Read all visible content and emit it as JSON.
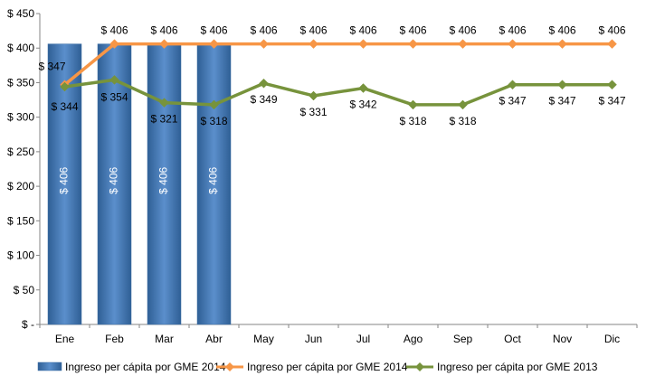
{
  "chart_data": {
    "type": "bar",
    "categories": [
      "Ene",
      "Feb",
      "Mar",
      "Abr",
      "May",
      "Jun",
      "Jul",
      "Ago",
      "Sep",
      "Oct",
      "Nov",
      "Dic"
    ],
    "y_ticks": [
      "$ -",
      "$ 50",
      "$ 100",
      "$ 150",
      "$ 200",
      "$ 250",
      "$ 300",
      "$ 350",
      "$ 400",
      "$ 450"
    ],
    "ylim": [
      0,
      450
    ],
    "grid": false,
    "legend_position": "bottom",
    "series": [
      {
        "name": "Ingreso per cápita por GME 2014",
        "kind": "bar",
        "color": "#4F81BD",
        "values": [
          406,
          406,
          406,
          406,
          null,
          null,
          null,
          null,
          null,
          null,
          null,
          null
        ],
        "labels": [
          "$ 406",
          "$ 406",
          "$ 406",
          "$ 406",
          "",
          "",
          "",
          "",
          "",
          "",
          "",
          ""
        ]
      },
      {
        "name": "Ingreso per cápita por GME 2014",
        "kind": "line",
        "color": "#F79646",
        "values": [
          347,
          406,
          406,
          406,
          406,
          406,
          406,
          406,
          406,
          406,
          406,
          406
        ],
        "labels": [
          "$ 347",
          "$ 406",
          "$ 406",
          "$ 406",
          "$ 406",
          "$ 406",
          "$ 406",
          "$ 406",
          "$ 406",
          "$ 406",
          "$ 406",
          "$ 406"
        ]
      },
      {
        "name": "Ingreso per cápita por GME 2013",
        "kind": "line",
        "color": "#77933C",
        "values": [
          344,
          354,
          321,
          318,
          349,
          331,
          342,
          318,
          318,
          347,
          347,
          347
        ],
        "labels": [
          "$ 344",
          "$ 354",
          "$ 321",
          "$ 318",
          "$ 349",
          "$ 331",
          "$ 342",
          "$ 318",
          "$ 318",
          "$ 347",
          "$ 347",
          "$ 347"
        ]
      }
    ]
  }
}
